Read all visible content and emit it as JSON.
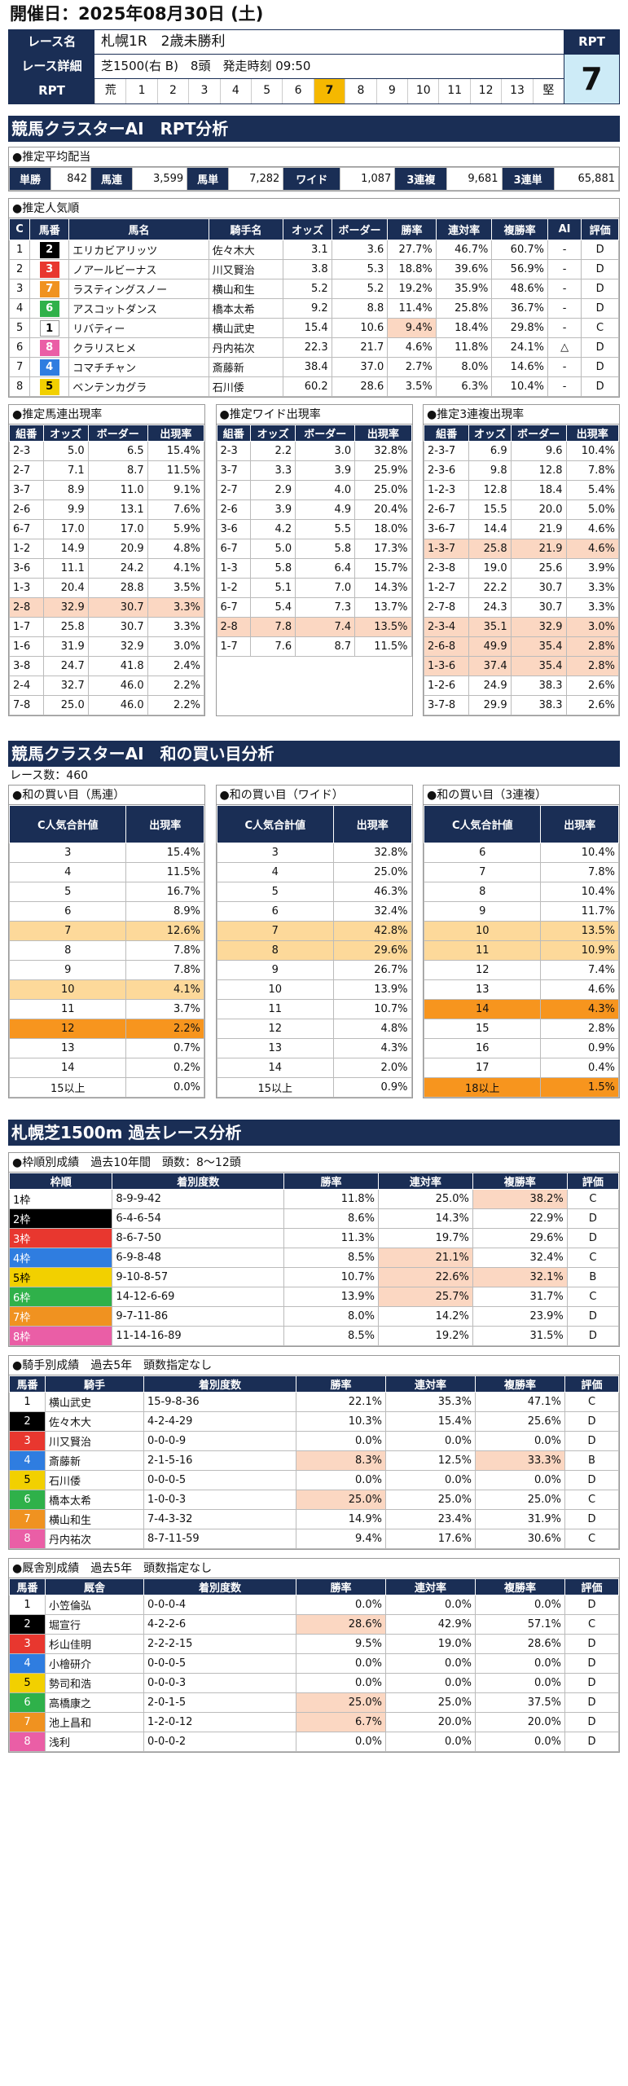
{
  "header": {
    "date": "開催日：2025年08月30日 (土)",
    "race_name_label": "レース名",
    "race_name": "札幌1R　2歳未勝利",
    "race_detail_label": "レース詳細",
    "race_detail": "芝1500(右 B)　8頭　発走時刻 09:50",
    "rpt_label": "RPT",
    "rpt_low": "荒",
    "rpt_high": "堅",
    "rpt_scale": [
      "1",
      "2",
      "3",
      "4",
      "5",
      "6",
      "7",
      "8",
      "9",
      "10",
      "11",
      "12",
      "13"
    ],
    "rpt_selected": "7",
    "rpt_value": "7"
  },
  "section1": {
    "title": "競馬クラスターAI　RPT分析",
    "avg_payout_title": "●推定平均配当",
    "payouts": [
      {
        "k": "単勝",
        "v": "842"
      },
      {
        "k": "馬連",
        "v": "3,599"
      },
      {
        "k": "馬単",
        "v": "7,282"
      },
      {
        "k": "ワイド",
        "v": "1,087"
      },
      {
        "k": "3連複",
        "v": "9,681"
      },
      {
        "k": "3連単",
        "v": "65,881"
      }
    ],
    "pop_title": "●推定人気順",
    "pop_headers": [
      "C",
      "馬番",
      "馬名",
      "騎手名",
      "オッズ",
      "ボーダー",
      "勝率",
      "連対率",
      "複勝率",
      "AI",
      "評価"
    ],
    "pop_rows": [
      [
        "1",
        "2",
        "エリカビアリッツ",
        "佐々木大",
        "3.1",
        "3.6",
        "27.7%",
        "46.7%",
        "60.7%",
        "-",
        "D"
      ],
      [
        "2",
        "3",
        "ノアールビーナス",
        "川又賢治",
        "3.8",
        "5.3",
        "18.8%",
        "39.6%",
        "56.9%",
        "-",
        "D"
      ],
      [
        "3",
        "7",
        "ラスティングスノー",
        "横山和生",
        "5.2",
        "5.2",
        "19.2%",
        "35.9%",
        "48.6%",
        "-",
        "D"
      ],
      [
        "4",
        "6",
        "アスコットダンス",
        "橋本太希",
        "9.2",
        "8.8",
        "11.4%",
        "25.8%",
        "36.7%",
        "-",
        "D"
      ],
      [
        "5",
        "1",
        "リバティー",
        "横山武史",
        "15.4",
        "10.6",
        "9.4%",
        "18.4%",
        "29.8%",
        "-",
        "C"
      ],
      [
        "6",
        "8",
        "クラリスヒメ",
        "丹内祐次",
        "22.3",
        "21.7",
        "4.6%",
        "11.8%",
        "24.1%",
        "△",
        "D"
      ],
      [
        "7",
        "4",
        "コマチチャン",
        "斎藤新",
        "38.4",
        "37.0",
        "2.7%",
        "8.0%",
        "14.6%",
        "-",
        "D"
      ],
      [
        "8",
        "5",
        "ベンテンカグラ",
        "石川倭",
        "60.2",
        "28.6",
        "3.5%",
        "6.3%",
        "10.4%",
        "-",
        "D"
      ]
    ]
  },
  "mini": [
    {
      "title": "●推定馬連出現率",
      "headers": [
        "組番",
        "オッズ",
        "ボーダー",
        "出現率"
      ],
      "rows": [
        [
          "2-3",
          "5.0",
          "6.5",
          "15.4%"
        ],
        [
          "2-7",
          "7.1",
          "8.7",
          "11.5%"
        ],
        [
          "3-7",
          "8.9",
          "11.0",
          "9.1%"
        ],
        [
          "2-6",
          "9.9",
          "13.1",
          "7.6%"
        ],
        [
          "6-7",
          "17.0",
          "17.0",
          "5.9%"
        ],
        [
          "1-2",
          "14.9",
          "20.9",
          "4.8%"
        ],
        [
          "3-6",
          "11.1",
          "24.2",
          "4.1%"
        ],
        [
          "1-3",
          "20.4",
          "28.8",
          "3.5%"
        ],
        [
          "2-8",
          "32.9",
          "30.7",
          "3.3%"
        ],
        [
          "1-7",
          "25.8",
          "30.7",
          "3.3%"
        ],
        [
          "1-6",
          "31.9",
          "32.9",
          "3.0%"
        ],
        [
          "3-8",
          "24.7",
          "41.8",
          "2.4%"
        ],
        [
          "2-4",
          "32.7",
          "46.0",
          "2.2%"
        ],
        [
          "7-8",
          "25.0",
          "46.0",
          "2.2%"
        ]
      ]
    },
    {
      "title": "●推定ワイド出現率",
      "headers": [
        "組番",
        "オッズ",
        "ボーダー",
        "出現率"
      ],
      "rows": [
        [
          "2-3",
          "2.2",
          "3.0",
          "32.8%"
        ],
        [
          "3-7",
          "3.3",
          "3.9",
          "25.9%"
        ],
        [
          "2-7",
          "2.9",
          "4.0",
          "25.0%"
        ],
        [
          "2-6",
          "3.9",
          "4.9",
          "20.4%"
        ],
        [
          "3-6",
          "4.2",
          "5.5",
          "18.0%"
        ],
        [
          "6-7",
          "5.0",
          "5.8",
          "17.3%"
        ],
        [
          "1-3",
          "5.8",
          "6.4",
          "15.7%"
        ],
        [
          "1-2",
          "5.1",
          "7.0",
          "14.3%"
        ],
        [
          "6-7",
          "5.4",
          "7.3",
          "13.7%"
        ],
        [
          "2-8",
          "7.8",
          "7.4",
          "13.5%"
        ],
        [
          "1-7",
          "7.6",
          "8.7",
          "11.5%"
        ]
      ]
    },
    {
      "title": "●推定3連複出現率",
      "headers": [
        "組番",
        "オッズ",
        "ボーダー",
        "出現率"
      ],
      "rows": [
        [
          "2-3-7",
          "6.9",
          "9.6",
          "10.4%"
        ],
        [
          "2-3-6",
          "9.8",
          "12.8",
          "7.8%"
        ],
        [
          "1-2-3",
          "12.8",
          "18.4",
          "5.4%"
        ],
        [
          "2-6-7",
          "15.5",
          "20.0",
          "5.0%"
        ],
        [
          "3-6-7",
          "14.4",
          "21.9",
          "4.6%"
        ],
        [
          "1-3-7",
          "25.8",
          "21.9",
          "4.6%"
        ],
        [
          "2-3-8",
          "19.0",
          "25.6",
          "3.9%"
        ],
        [
          "1-2-7",
          "22.2",
          "30.7",
          "3.3%"
        ],
        [
          "2-7-8",
          "24.3",
          "30.7",
          "3.3%"
        ],
        [
          "2-3-4",
          "35.1",
          "32.9",
          "3.0%"
        ],
        [
          "2-6-8",
          "49.9",
          "35.4",
          "2.8%"
        ],
        [
          "1-3-6",
          "37.4",
          "35.4",
          "2.8%"
        ],
        [
          "1-2-6",
          "24.9",
          "38.3",
          "2.6%"
        ],
        [
          "3-7-8",
          "29.9",
          "38.3",
          "2.6%"
        ]
      ]
    }
  ],
  "section2": {
    "title": "競馬クラスターAI　和の買い目分析",
    "races": "レース数：460",
    "tables": [
      {
        "title": "●和の買い目（馬連）",
        "headers": [
          "C人気合計値",
          "出現率"
        ],
        "rows": [
          [
            "3",
            "15.4%"
          ],
          [
            "4",
            "11.5%"
          ],
          [
            "5",
            "16.7%"
          ],
          [
            "6",
            "8.9%"
          ],
          [
            "7",
            "12.6%"
          ],
          [
            "8",
            "7.8%"
          ],
          [
            "9",
            "7.8%"
          ],
          [
            "10",
            "4.1%"
          ],
          [
            "11",
            "3.7%"
          ],
          [
            "12",
            "2.2%"
          ],
          [
            "13",
            "0.7%"
          ],
          [
            "14",
            "0.2%"
          ],
          [
            "15以上",
            "0.0%"
          ]
        ]
      },
      {
        "title": "●和の買い目（ワイド）",
        "headers": [
          "C人気合計値",
          "出現率"
        ],
        "rows": [
          [
            "3",
            "32.8%"
          ],
          [
            "4",
            "25.0%"
          ],
          [
            "5",
            "46.3%"
          ],
          [
            "6",
            "32.4%"
          ],
          [
            "7",
            "42.8%"
          ],
          [
            "8",
            "29.6%"
          ],
          [
            "9",
            "26.7%"
          ],
          [
            "10",
            "13.9%"
          ],
          [
            "11",
            "10.7%"
          ],
          [
            "12",
            "4.8%"
          ],
          [
            "13",
            "4.3%"
          ],
          [
            "14",
            "2.0%"
          ],
          [
            "15以上",
            "0.9%"
          ]
        ]
      },
      {
        "title": "●和の買い目（3連複）",
        "headers": [
          "C人気合計値",
          "出現率"
        ],
        "rows": [
          [
            "6",
            "10.4%"
          ],
          [
            "7",
            "7.8%"
          ],
          [
            "8",
            "10.4%"
          ],
          [
            "9",
            "11.7%"
          ],
          [
            "10",
            "13.5%"
          ],
          [
            "11",
            "10.9%"
          ],
          [
            "12",
            "7.4%"
          ],
          [
            "13",
            "4.6%"
          ],
          [
            "14",
            "4.3%"
          ],
          [
            "15",
            "2.8%"
          ],
          [
            "16",
            "0.9%"
          ],
          [
            "17",
            "0.4%"
          ],
          [
            "18以上",
            "1.5%"
          ]
        ]
      }
    ]
  },
  "section3": {
    "title": "札幌芝1500m 過去レース分析",
    "frame": {
      "title": "●枠順別成績　過去10年間　頭数：8～12頭",
      "headers": [
        "枠順",
        "着別度数",
        "勝率",
        "連対率",
        "複勝率",
        "評価"
      ],
      "rows": [
        [
          "1枠",
          "8-9-9-42",
          "11.8%",
          "25.0%",
          "38.2%",
          "C"
        ],
        [
          "2枠",
          "6-4-6-54",
          "8.6%",
          "14.3%",
          "22.9%",
          "D"
        ],
        [
          "3枠",
          "8-6-7-50",
          "11.3%",
          "19.7%",
          "29.6%",
          "D"
        ],
        [
          "4枠",
          "6-9-8-48",
          "8.5%",
          "21.1%",
          "32.4%",
          "C"
        ],
        [
          "5枠",
          "9-10-8-57",
          "10.7%",
          "22.6%",
          "32.1%",
          "B"
        ],
        [
          "6枠",
          "14-12-6-69",
          "13.9%",
          "25.7%",
          "31.7%",
          "C"
        ],
        [
          "7枠",
          "9-7-11-86",
          "8.0%",
          "14.2%",
          "23.9%",
          "D"
        ],
        [
          "8枠",
          "11-14-16-89",
          "8.5%",
          "19.2%",
          "31.5%",
          "D"
        ]
      ]
    },
    "jockey": {
      "title": "●騎手別成績　過去5年　頭数指定なし",
      "headers": [
        "馬番",
        "騎手",
        "着別度数",
        "勝率",
        "連対率",
        "複勝率",
        "評価"
      ],
      "rows": [
        [
          "1",
          "横山武史",
          "15-9-8-36",
          "22.1%",
          "35.3%",
          "47.1%",
          "C"
        ],
        [
          "2",
          "佐々木大",
          "4-2-4-29",
          "10.3%",
          "15.4%",
          "25.6%",
          "D"
        ],
        [
          "3",
          "川又賢治",
          "0-0-0-9",
          "0.0%",
          "0.0%",
          "0.0%",
          "D"
        ],
        [
          "4",
          "斎藤新",
          "2-1-5-16",
          "8.3%",
          "12.5%",
          "33.3%",
          "B"
        ],
        [
          "5",
          "石川倭",
          "0-0-0-5",
          "0.0%",
          "0.0%",
          "0.0%",
          "D"
        ],
        [
          "6",
          "橋本太希",
          "1-0-0-3",
          "25.0%",
          "25.0%",
          "25.0%",
          "C"
        ],
        [
          "7",
          "横山和生",
          "7-4-3-32",
          "14.9%",
          "23.4%",
          "31.9%",
          "D"
        ],
        [
          "8",
          "丹内祐次",
          "8-7-11-59",
          "9.4%",
          "17.6%",
          "30.6%",
          "C"
        ]
      ]
    },
    "stable": {
      "title": "●厩舎別成績　過去5年　頭数指定なし",
      "headers": [
        "馬番",
        "厩舎",
        "着別度数",
        "勝率",
        "連対率",
        "複勝率",
        "評価"
      ],
      "rows": [
        [
          "1",
          "小笠倫弘",
          "0-0-0-4",
          "0.0%",
          "0.0%",
          "0.0%",
          "D"
        ],
        [
          "2",
          "堀宣行",
          "4-2-2-6",
          "28.6%",
          "42.9%",
          "57.1%",
          "C"
        ],
        [
          "3",
          "杉山佳明",
          "2-2-2-15",
          "9.5%",
          "19.0%",
          "28.6%",
          "D"
        ],
        [
          "4",
          "小檜研介",
          "0-0-0-5",
          "0.0%",
          "0.0%",
          "0.0%",
          "D"
        ],
        [
          "5",
          "勢司和浩",
          "0-0-0-3",
          "0.0%",
          "0.0%",
          "0.0%",
          "D"
        ],
        [
          "6",
          "高橋康之",
          "2-0-1-5",
          "25.0%",
          "25.0%",
          "37.5%",
          "D"
        ],
        [
          "7",
          "池上昌和",
          "1-2-0-12",
          "6.7%",
          "20.0%",
          "20.0%",
          "D"
        ],
        [
          "8",
          "浅利",
          "0-0-0-2",
          "0.0%",
          "0.0%",
          "0.0%",
          "D"
        ]
      ]
    }
  },
  "colors": {
    "navy": "#1a2e55",
    "frame": [
      "#ffffff",
      "#000000",
      "#e8372f",
      "#2f7de0",
      "#f2d000",
      "#2fb14a",
      "#f09220",
      "#ea5ea6"
    ],
    "frame_text": [
      "#000000",
      "#ffffff",
      "#ffffff",
      "#ffffff",
      "#000000",
      "#ffffff",
      "#ffffff",
      "#ffffff"
    ]
  }
}
